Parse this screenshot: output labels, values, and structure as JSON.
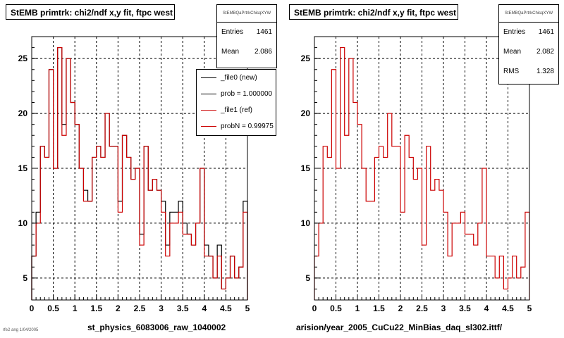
{
  "chart_data": [
    {
      "type": "step",
      "title": "StEMB primtrk: chi2/ndf x,y fit, ftpc west",
      "xlim": [
        0,
        5
      ],
      "ylim": [
        3,
        27
      ],
      "x_ticks": [
        "0",
        "0.5",
        "1",
        "1.5",
        "2",
        "2.5",
        "3",
        "3.5",
        "4",
        "4.5",
        "5"
      ],
      "y_ticks": [
        "5",
        "10",
        "15",
        "20",
        "25"
      ],
      "grid": true,
      "bin_width": 0.1,
      "series": [
        {
          "name": "_file0 (new)",
          "color": "#000000",
          "values": [
            7,
            11,
            17,
            16,
            24,
            15,
            26,
            19,
            25,
            21,
            19,
            15,
            13,
            12,
            16,
            17,
            16,
            20,
            17,
            17,
            12,
            18,
            16,
            14,
            15,
            9,
            17,
            13,
            14,
            13,
            12,
            8,
            11,
            11,
            12,
            10,
            9,
            8,
            10,
            15,
            8,
            7,
            5,
            8,
            4,
            5,
            7,
            5,
            6,
            12
          ]
        },
        {
          "name": "_file1 (ref)",
          "color": "#cc0000",
          "values": [
            7,
            10,
            17,
            16,
            24,
            15,
            26,
            18,
            25,
            21,
            19,
            15,
            12,
            12,
            16,
            17,
            16,
            20,
            17,
            17,
            11,
            18,
            16,
            14,
            15,
            8,
            17,
            13,
            14,
            13,
            11,
            7,
            10,
            10,
            11,
            9,
            9,
            8,
            10,
            15,
            7,
            7,
            5,
            7,
            4,
            5,
            7,
            5,
            6,
            11
          ]
        }
      ],
      "stats": {
        "name": "StEMBQaPrtrkChisqXYW",
        "entries_label": "Entries",
        "entries": "1461",
        "mean_label": "Mean",
        "mean": "2.086"
      },
      "legend": {
        "position": "top-right",
        "items": [
          "_file0 (new)",
          "prob = 1.000000",
          "_file1 (ref)",
          "probN = 0.99975"
        ]
      },
      "footer": "st_physics_6083006_raw_1040002"
    },
    {
      "type": "step",
      "title": "StEMB primtrk: chi2/ndf x,y fit, ftpc west",
      "xlim": [
        0,
        5
      ],
      "ylim": [
        3,
        27
      ],
      "x_ticks": [
        "0",
        "0.5",
        "1",
        "1.5",
        "2",
        "2.5",
        "3",
        "3.5",
        "4",
        "4.5",
        "5"
      ],
      "y_ticks": [
        "5",
        "10",
        "15",
        "20",
        "25"
      ],
      "grid": true,
      "bin_width": 0.1,
      "series": [
        {
          "name": "",
          "color": "#cc0000",
          "values": [
            7,
            10,
            17,
            16,
            24,
            15,
            26,
            18,
            25,
            21,
            19,
            15,
            12,
            12,
            16,
            17,
            16,
            20,
            17,
            17,
            11,
            18,
            16,
            14,
            15,
            8,
            17,
            13,
            14,
            13,
            11,
            7,
            10,
            10,
            11,
            9,
            9,
            8,
            10,
            15,
            7,
            7,
            5,
            7,
            4,
            5,
            7,
            5,
            6,
            11
          ]
        }
      ],
      "stats": {
        "name": "StEMBQaPrtrkChisqXYW",
        "entries_label": "Entries",
        "entries": "1461",
        "mean_label": "Mean",
        "mean": "2.082",
        "rms_label": "RMS",
        "rms": "1.328"
      },
      "footer": "arision/year_2005_CuCu22_MinBias_daq_sl302.ittf/"
    }
  ],
  "tiny_text": "rfe2 ang 1/04/2005"
}
